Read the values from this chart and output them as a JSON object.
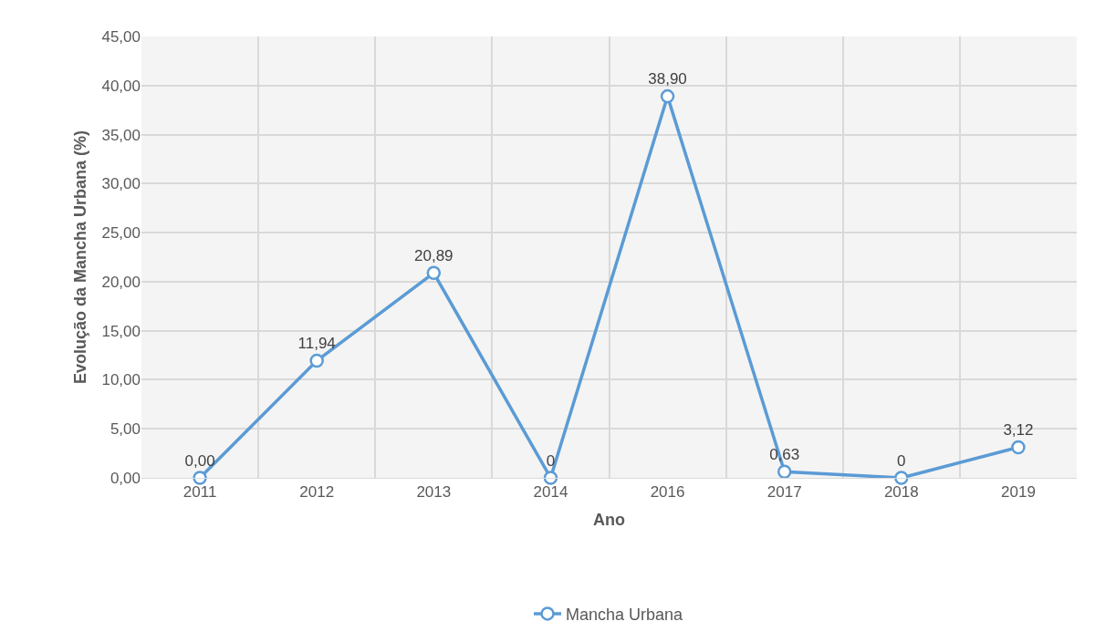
{
  "chart_data": {
    "type": "line",
    "xlabel": "Ano",
    "ylabel": "Evolução da Mancha Urbana (%)",
    "categories": [
      "2011",
      "2012",
      "2013",
      "2014",
      "2016",
      "2017",
      "2018",
      "2019"
    ],
    "series": [
      {
        "name": "Mancha Urbana",
        "color": "#5b9bd5",
        "values": [
          0,
          11.94,
          20.89,
          0,
          38.9,
          0.63,
          0,
          3.12
        ],
        "value_labels": [
          "0,00",
          "11,94",
          "20,89",
          "0",
          "38,90",
          "0,63",
          "0",
          "3,12"
        ]
      }
    ],
    "ylim": [
      0,
      45
    ],
    "yticks": [
      {
        "value": 0,
        "label": "0,00"
      },
      {
        "value": 5,
        "label": "5,00"
      },
      {
        "value": 10,
        "label": "10,00"
      },
      {
        "value": 15,
        "label": "15,00"
      },
      {
        "value": 20,
        "label": "20,00"
      },
      {
        "value": 25,
        "label": "25,00"
      },
      {
        "value": 30,
        "label": "30,00"
      },
      {
        "value": 35,
        "label": "35,00"
      },
      {
        "value": 40,
        "label": "40,00"
      },
      {
        "value": 45,
        "label": "45,00"
      }
    ],
    "grid": true,
    "legend": "bottom",
    "marker": "circle",
    "line_style": "solid"
  }
}
